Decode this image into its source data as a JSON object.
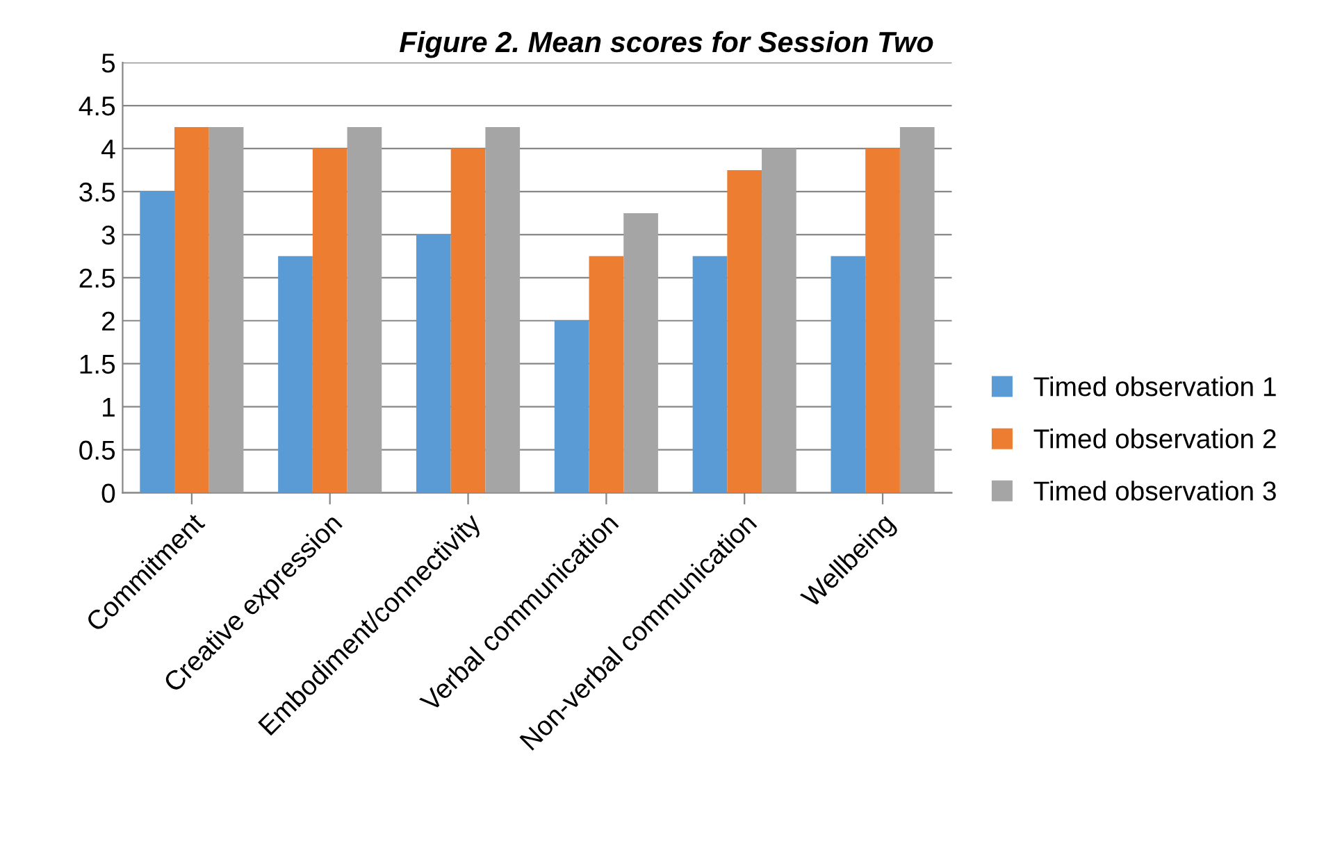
{
  "chart_data": {
    "type": "bar",
    "title": "Figure 2. Mean scores for Session Two",
    "categories": [
      "Commitment",
      "Creative expression",
      "Embodiment/connectivity",
      "Verbal communication",
      "Non-verbal communication",
      "Wellbeing"
    ],
    "series": [
      {
        "name": "Timed observation 1",
        "color": "#5b9bd5",
        "values": [
          3.5,
          2.75,
          3,
          2,
          2.75,
          2.75
        ]
      },
      {
        "name": "Timed observation 2",
        "color": "#ed7d31",
        "values": [
          4.25,
          4,
          4,
          2.75,
          3.75,
          4
        ]
      },
      {
        "name": "Timed observation 3",
        "color": "#a5a5a5",
        "values": [
          4.25,
          4.25,
          4.25,
          3.25,
          4,
          4.25
        ]
      }
    ],
    "ylim": [
      0,
      5
    ],
    "yticks": [
      0,
      0.5,
      1,
      1.5,
      2,
      2.5,
      3,
      3.5,
      4,
      4.5,
      5
    ],
    "grid": "y",
    "legend": "right"
  }
}
